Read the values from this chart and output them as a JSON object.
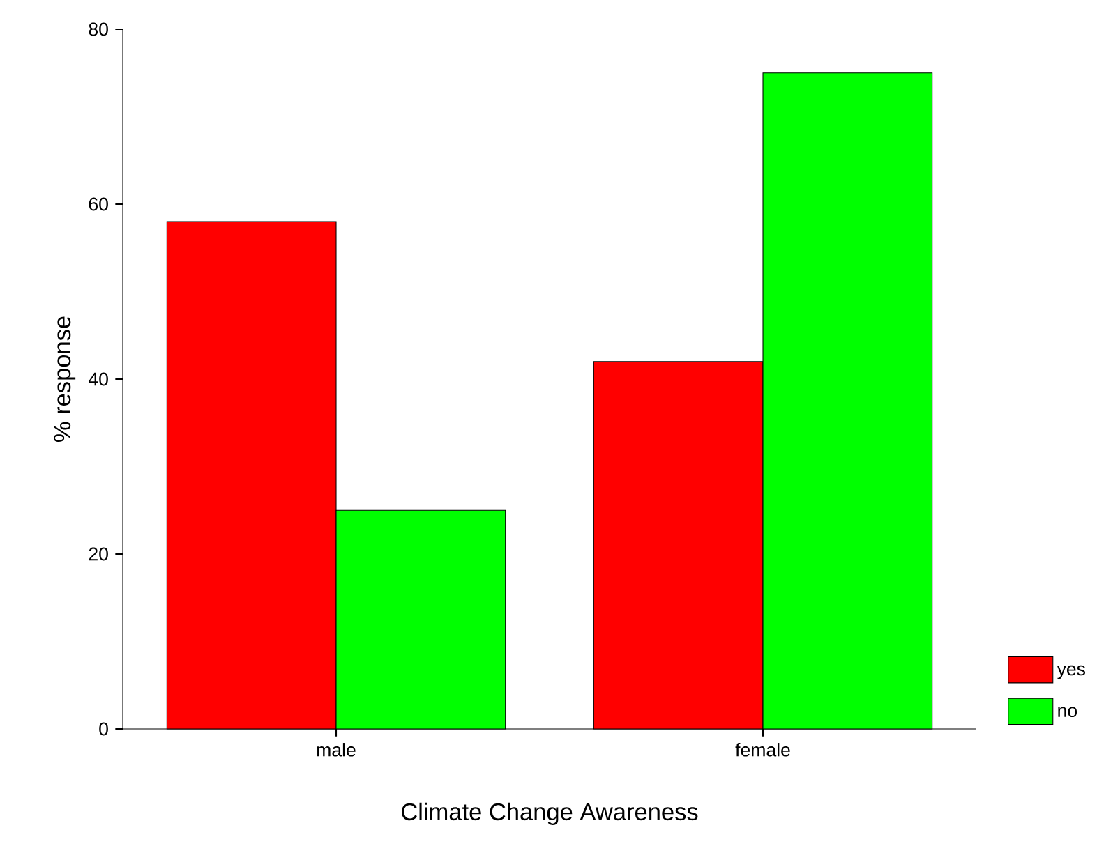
{
  "chart_data": {
    "type": "bar",
    "xlabel": "Climate Change Awareness",
    "ylabel": "% response",
    "categories": [
      "male",
      "female"
    ],
    "series": [
      {
        "name": "yes",
        "color": "#ff0000",
        "values": [
          58,
          42
        ]
      },
      {
        "name": "no",
        "color": "#00ff00",
        "values": [
          25,
          75
        ]
      }
    ],
    "ylim": [
      0,
      80
    ],
    "yticks": [
      0,
      20,
      40,
      60,
      80
    ],
    "legend": "bottom right"
  }
}
